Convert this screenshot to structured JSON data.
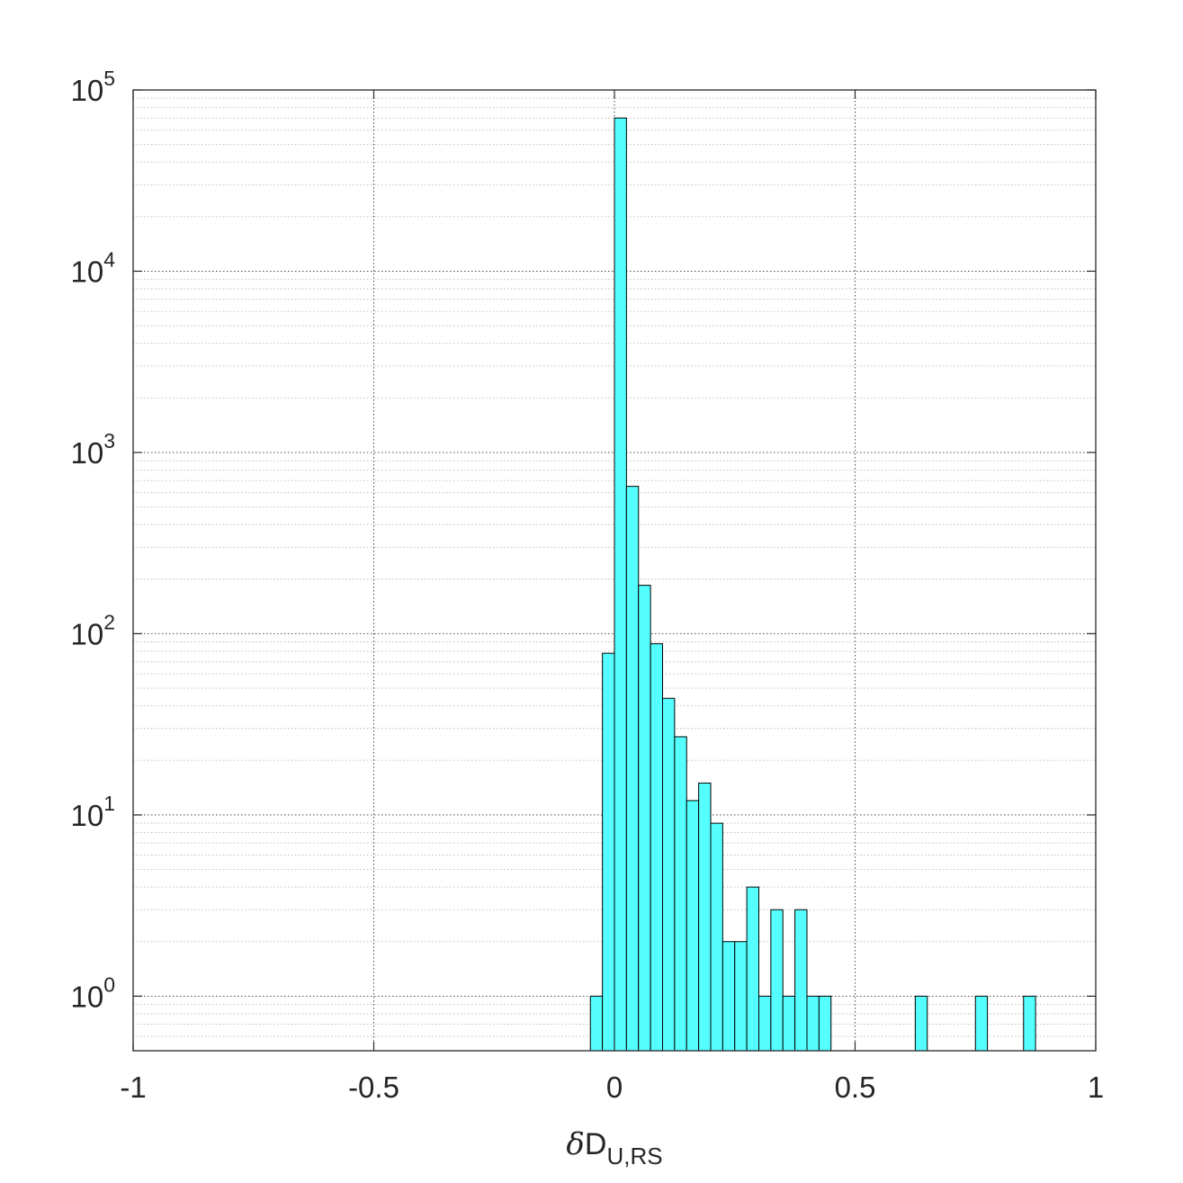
{
  "chart_data": {
    "type": "bar",
    "title": "",
    "xlabel": {
      "symbol": "δ",
      "main": "D",
      "subscript": "U,RS"
    },
    "ylabel": "",
    "x_scale": "linear",
    "y_scale": "log",
    "xlim": [
      -1,
      1
    ],
    "ylim": [
      0.5,
      100000
    ],
    "x_ticks": [
      -1,
      -0.5,
      0,
      0.5,
      1
    ],
    "x_tick_labels": [
      "-1",
      "-0.5",
      "0",
      "0.5",
      "1"
    ],
    "y_ticks": [
      1,
      10,
      100,
      1000,
      10000,
      100000
    ],
    "y_tick_labels": [
      {
        "base": "10",
        "exp": "0"
      },
      {
        "base": "10",
        "exp": "1"
      },
      {
        "base": "10",
        "exp": "2"
      },
      {
        "base": "10",
        "exp": "3"
      },
      {
        "base": "10",
        "exp": "4"
      },
      {
        "base": "10",
        "exp": "5"
      }
    ],
    "grid": true,
    "minor_grid": true,
    "bin_width": 0.025,
    "bins": [
      {
        "left": -0.05,
        "count": 1
      },
      {
        "left": -0.025,
        "count": 78
      },
      {
        "left": 0.0,
        "count": 70000
      },
      {
        "left": 0.025,
        "count": 650
      },
      {
        "left": 0.05,
        "count": 185
      },
      {
        "left": 0.075,
        "count": 88
      },
      {
        "left": 0.1,
        "count": 44
      },
      {
        "left": 0.125,
        "count": 27
      },
      {
        "left": 0.15,
        "count": 12
      },
      {
        "left": 0.175,
        "count": 15
      },
      {
        "left": 0.2,
        "count": 9
      },
      {
        "left": 0.225,
        "count": 2
      },
      {
        "left": 0.25,
        "count": 2
      },
      {
        "left": 0.275,
        "count": 4
      },
      {
        "left": 0.3,
        "count": 1
      },
      {
        "left": 0.325,
        "count": 3
      },
      {
        "left": 0.35,
        "count": 1
      },
      {
        "left": 0.375,
        "count": 3
      },
      {
        "left": 0.4,
        "count": 1
      },
      {
        "left": 0.425,
        "count": 1
      },
      {
        "left": 0.625,
        "count": 1
      },
      {
        "left": 0.75,
        "count": 1
      },
      {
        "left": 0.85,
        "count": 1
      }
    ],
    "colors": {
      "bar_fill": "#55FFFF",
      "bar_edge": "#000000",
      "axes": "#262626",
      "grid": "#262626"
    }
  }
}
